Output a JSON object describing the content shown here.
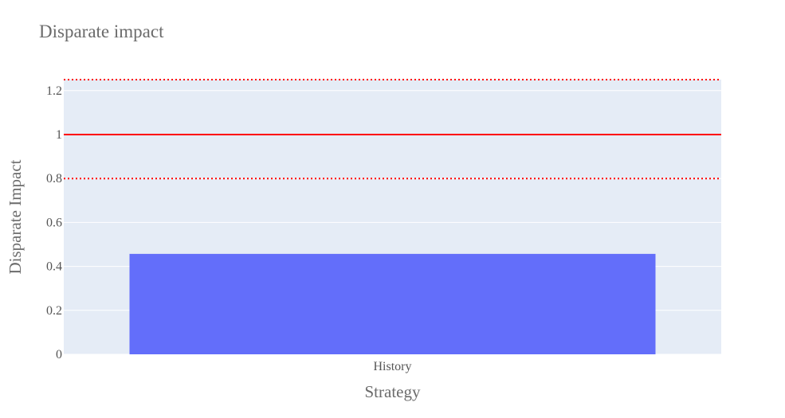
{
  "chart_data": {
    "type": "bar",
    "title": "Disparate impact",
    "xlabel": "Strategy",
    "ylabel": "Disparate Impact",
    "categories": [
      "History"
    ],
    "values": [
      0.457
    ],
    "ylim": [
      0,
      1.25
    ],
    "yticks": [
      0,
      0.2,
      0.4,
      0.6,
      0.8,
      1,
      1.2
    ],
    "ytick_labels": [
      "0",
      "0.2",
      "0.4",
      "0.6",
      "0.8",
      "1",
      "1.2"
    ],
    "grid": true,
    "reference_lines": [
      {
        "y": 1.0,
        "style": "solid"
      },
      {
        "y": 0.8,
        "style": "dotted"
      },
      {
        "y": 1.25,
        "style": "dotted"
      }
    ],
    "colors": {
      "bar": "#636efa",
      "plot_background": "#e5ecf6",
      "reference_line": "#ff0000",
      "grid": "#ffffff"
    }
  }
}
